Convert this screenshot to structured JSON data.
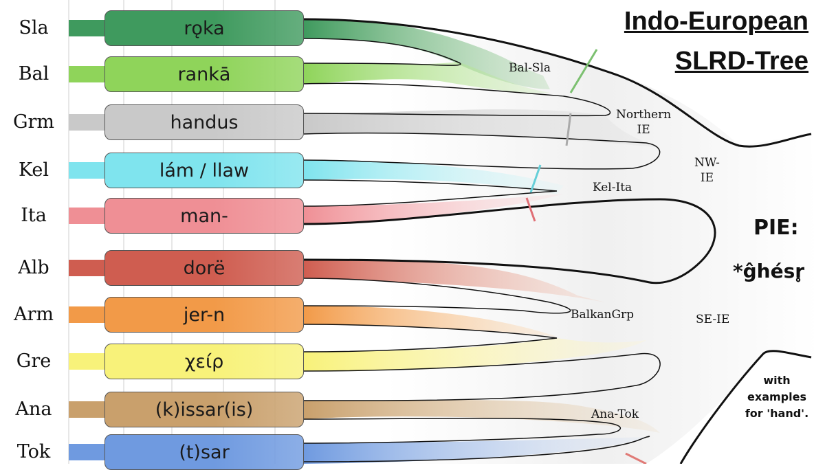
{
  "title": {
    "line1": "Indo-European",
    "line2": "SLRD-Tree"
  },
  "languages": [
    {
      "abbr": "Sla",
      "word": "rǫka",
      "color": "#3f9a5e"
    },
    {
      "abbr": "Bal",
      "word": "rankā",
      "color": "#8fd45a"
    },
    {
      "abbr": "Grm",
      "word": "handus",
      "color": "#c9c9c9"
    },
    {
      "abbr": "Kel",
      "word": "lám / llaw",
      "color": "#7fe4ee"
    },
    {
      "abbr": "Ita",
      "word": "man-",
      "color": "#ef8f95"
    },
    {
      "abbr": "Alb",
      "word": "dorë",
      "color": "#cf5d50"
    },
    {
      "abbr": "Arm",
      "word": "jer-n",
      "color": "#f29a48"
    },
    {
      "abbr": "Gre",
      "word": "χείρ",
      "color": "#f8f27a"
    },
    {
      "abbr": "Ana",
      "word": "(k)issar(is)",
      "color": "#c9a06c"
    },
    {
      "abbr": "Tok",
      "word": "(t)sar",
      "color": "#6f9ae0"
    }
  ],
  "nodes": {
    "bal_sla": "Bal-Sla",
    "northern_ie_1": "Northern",
    "northern_ie_2": "IE",
    "nw_ie_1": "NW-",
    "nw_ie_2": "IE",
    "kel_ita": "Kel-Ita",
    "balkan": "BalkanGrp",
    "se_ie": "SE-IE",
    "ana_tok": "Ana-Tok"
  },
  "pie": {
    "label": "PIE:",
    "form": "*ĝhésr̥"
  },
  "note": {
    "line1": "with",
    "line2": "examples",
    "line3": "for 'hand'."
  }
}
